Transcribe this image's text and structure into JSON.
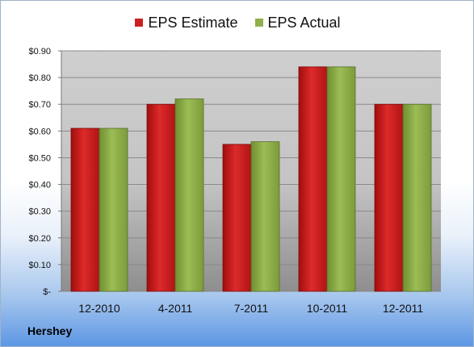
{
  "chart_data": {
    "type": "bar",
    "categories": [
      "12-2010",
      "4-2011",
      "7-2011",
      "10-2011",
      "12-2011"
    ],
    "series": [
      {
        "name": "EPS Estimate",
        "values": [
          0.61,
          0.7,
          0.55,
          0.84,
          0.7
        ],
        "color": "#cc1f1f"
      },
      {
        "name": "EPS Actual",
        "values": [
          0.61,
          0.72,
          0.56,
          0.84,
          0.7
        ],
        "color": "#8fb04a"
      }
    ],
    "ylim": [
      0,
      0.9
    ],
    "yticks": [
      0,
      0.1,
      0.2,
      0.3,
      0.4,
      0.5,
      0.6,
      0.7,
      0.8,
      0.9
    ],
    "ytick_labels": [
      "$-",
      "$0.10",
      "$0.20",
      "$0.30",
      "$0.40",
      "$0.50",
      "$0.60",
      "$0.70",
      "$0.80",
      "$0.90"
    ],
    "grid": true,
    "legend_position": "top",
    "plot_background": "#d0d0d0"
  },
  "source_label": "Hershey"
}
